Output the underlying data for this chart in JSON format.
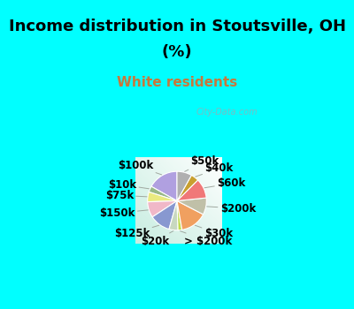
{
  "title_line1": "Income distribution in Stoutsville, OH",
  "title_line2": "(%)",
  "subtitle": "White residents",
  "background_color": "#00FFFF",
  "subtitle_color": "#c8783c",
  "labels": [
    "$100k",
    "$10k",
    "$75k",
    "$150k",
    "$125k",
    "$20k",
    "> $200k",
    "$30k",
    "$200k",
    "$60k",
    "$40k",
    "$50k"
  ],
  "sizes": [
    15.5,
    3.0,
    5.0,
    8.0,
    10.5,
    4.5,
    2.0,
    13.5,
    8.5,
    10.0,
    4.0,
    7.5
  ],
  "colors": [
    "#b0a0e0",
    "#98b888",
    "#eaea80",
    "#f0b8c8",
    "#8898d0",
    "#c8d8c0",
    "#c0dc50",
    "#f0a060",
    "#c0c0a8",
    "#f07878",
    "#c8a030",
    "#b0b0b0"
  ],
  "startangle": 90,
  "label_fontsize": 8.5,
  "title_fontsize": 13,
  "subtitle_fontsize": 11,
  "watermark": "City-Data.com"
}
